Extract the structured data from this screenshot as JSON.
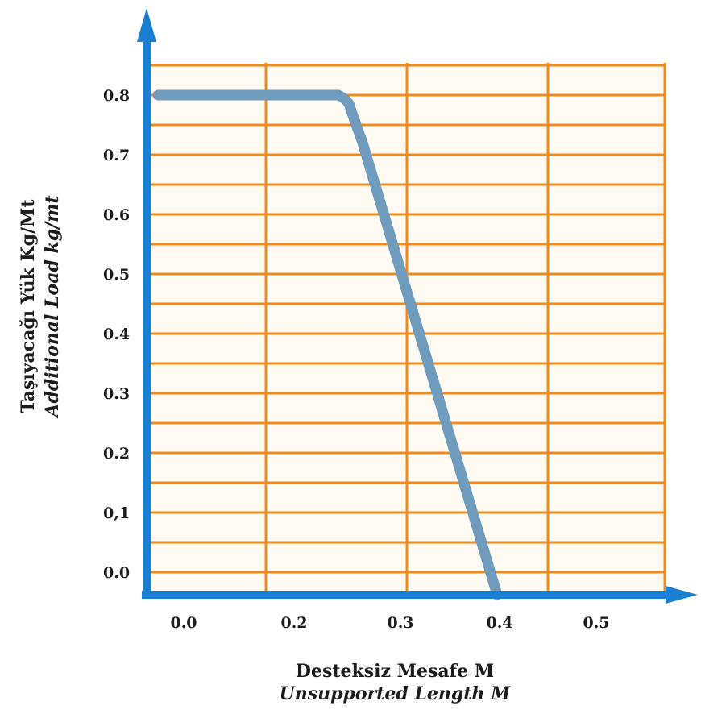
{
  "chart_data": {
    "type": "line",
    "xlabel": "Desteksiz Mesafe M",
    "xlabel_secondary": "Unsupported Length M",
    "ylabel": "Taşıyacağı Yük Kg/Mt",
    "ylabel_secondary": "Additional Load kg/mt",
    "x_tick_labels": [
      "0.0",
      "0.2",
      "0.3",
      "0.4",
      "0.5"
    ],
    "y_tick_labels": [
      "0.0",
      "0,1",
      "0.2",
      "0.3",
      "0.4",
      "0.5",
      "0.6",
      "0.7",
      "0.8"
    ],
    "grid": true,
    "colors": {
      "line": "#6f9bbd",
      "grid": "#f08a1c",
      "axis": "#1a7fd0",
      "background": "#fffbf3"
    },
    "series": [
      {
        "x": [
          0.0,
          0.25,
          0.26,
          0.28,
          0.4
        ],
        "y": [
          0.8,
          0.8,
          0.785,
          0.72,
          0.0
        ]
      }
    ]
  }
}
